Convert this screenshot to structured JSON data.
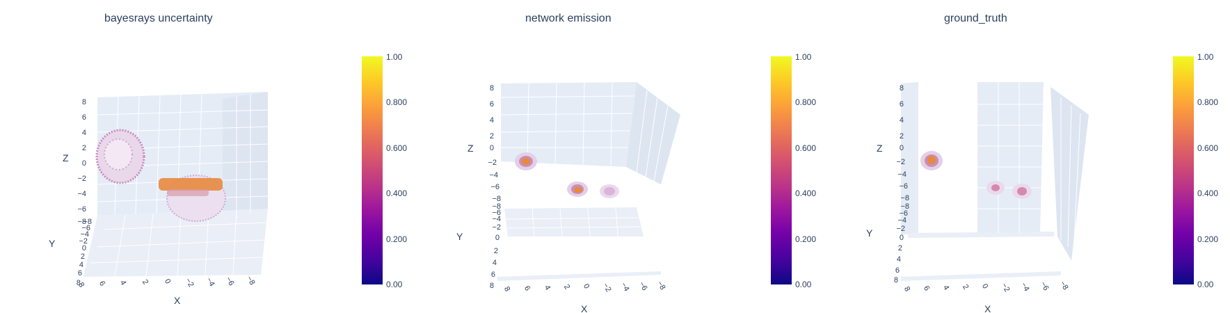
{
  "colorscale": {
    "ticks": [
      "0.00",
      "0.200",
      "0.400",
      "0.600",
      "0.800",
      "1.00"
    ],
    "colors": [
      "#0d0887",
      "#46039f",
      "#7201a8",
      "#9c179e",
      "#bd3786",
      "#d8576b",
      "#ed7953",
      "#fb9f3a",
      "#fdca26",
      "#f0f921"
    ]
  },
  "chart_data": [
    {
      "type": "scatter3d",
      "title": "bayesrays uncertainty",
      "axes": {
        "x": {
          "label": "X",
          "ticks": [
            "8",
            "6",
            "4",
            "2",
            "0",
            "−2",
            "−4",
            "−6",
            "−8"
          ]
        },
        "y": {
          "label": "Y",
          "ticks": [
            "−8",
            "−6",
            "−4",
            "−2",
            "0",
            "2",
            "4",
            "6",
            "8"
          ]
        },
        "z": {
          "label": "Z",
          "ticks": [
            "8",
            "6",
            "4",
            "2",
            "0",
            "−2",
            "−4",
            "−6",
            "−8"
          ]
        }
      },
      "colorbar_range": [
        0,
        1
      ]
    },
    {
      "type": "scatter3d",
      "title": "network emission",
      "axes": {
        "x": {
          "label": "X",
          "ticks": [
            "8",
            "6",
            "4",
            "2",
            "0",
            "−2",
            "−4",
            "−6",
            "−8"
          ]
        },
        "y": {
          "label": "Y",
          "ticks": [
            "−8",
            "−6",
            "−4",
            "−2",
            "0",
            "2",
            "4",
            "6",
            "8"
          ]
        },
        "z": {
          "label": "Z",
          "ticks": [
            "8",
            "6",
            "4",
            "2",
            "0",
            "−2",
            "−4",
            "−6",
            "−8"
          ]
        }
      },
      "colorbar_range": [
        0,
        1
      ]
    },
    {
      "type": "scatter3d",
      "title": "ground_truth",
      "axes": {
        "x": {
          "label": "X",
          "ticks": [
            "8",
            "6",
            "4",
            "2",
            "0",
            "−2",
            "−4",
            "−6",
            "−8"
          ]
        },
        "y": {
          "label": "Y",
          "ticks": [
            "−8",
            "−6",
            "−4",
            "−2",
            "0",
            "2",
            "4",
            "6",
            "8"
          ]
        },
        "z": {
          "label": "Z",
          "ticks": [
            "8",
            "6",
            "4",
            "2",
            "0",
            "−2",
            "−4",
            "−6",
            "−8"
          ]
        }
      },
      "colorbar_range": [
        0,
        1
      ]
    }
  ]
}
